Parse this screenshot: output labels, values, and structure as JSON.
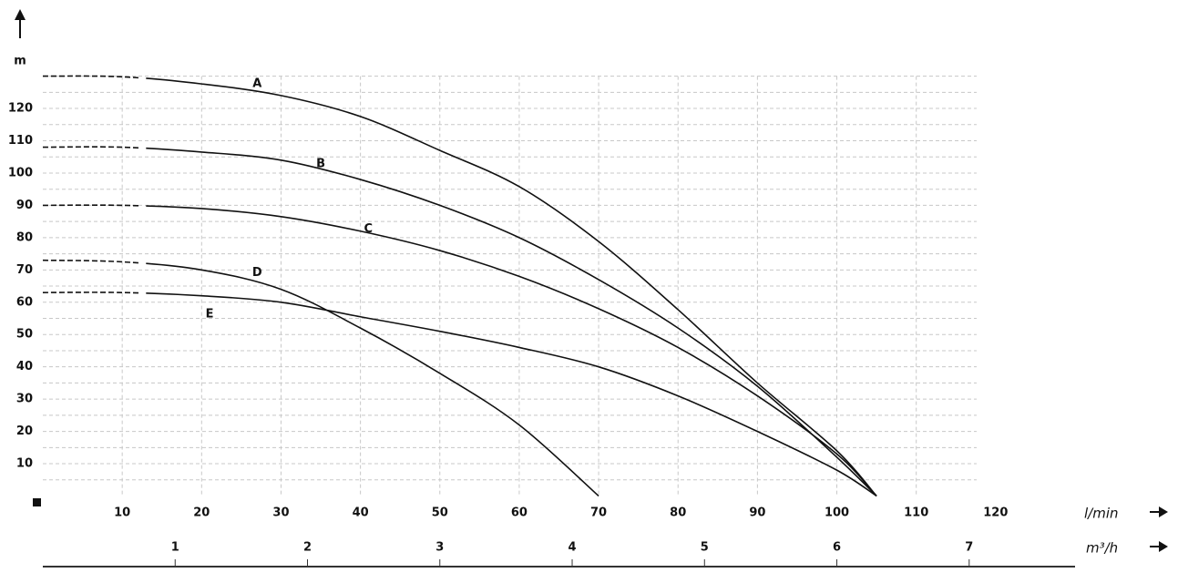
{
  "chart_data": {
    "type": "line",
    "y_label": "m",
    "x_label": "l/min",
    "x2_label": "m³/h",
    "x": [
      0,
      10,
      20,
      30,
      40,
      50,
      60,
      70,
      80,
      90,
      100,
      105
    ],
    "series": [
      {
        "name": "A",
        "color": "#111111",
        "values": [
          130,
          129.8,
          127.6,
          124,
          117.5,
          107,
          95.8,
          78.8,
          57.7,
          35,
          14,
          0
        ]
      },
      {
        "name": "B",
        "color": "#111111",
        "values": [
          108,
          108,
          106.5,
          104,
          98,
          90,
          80,
          67,
          52,
          34,
          12,
          0
        ]
      },
      {
        "name": "C",
        "color": "#111111",
        "values": [
          90,
          90,
          89,
          86.5,
          82,
          76,
          68,
          58,
          46,
          31,
          13,
          0
        ]
      },
      {
        "name": "D",
        "color": "#111111",
        "values": [
          73,
          72.5,
          70,
          64,
          52,
          38,
          22,
          0,
          null,
          null,
          null,
          null
        ]
      },
      {
        "name": "E",
        "color": "#111111",
        "values": [
          63,
          63,
          62,
          60,
          55.5,
          51,
          46,
          40,
          31,
          20,
          8,
          0
        ]
      }
    ],
    "dashed_below_x": 13,
    "xlim": [
      0,
      130
    ],
    "xticks": [
      10,
      20,
      30,
      40,
      50,
      60,
      70,
      80,
      90,
      100,
      110,
      120
    ],
    "ylim": [
      0,
      130
    ],
    "yticks": [
      10,
      20,
      30,
      40,
      50,
      60,
      70,
      80,
      90,
      100,
      110,
      120
    ],
    "x2lim": [
      0,
      7.8
    ],
    "x2ticks": [
      1,
      2,
      3,
      4,
      5,
      6,
      7
    ],
    "grid": true
  }
}
